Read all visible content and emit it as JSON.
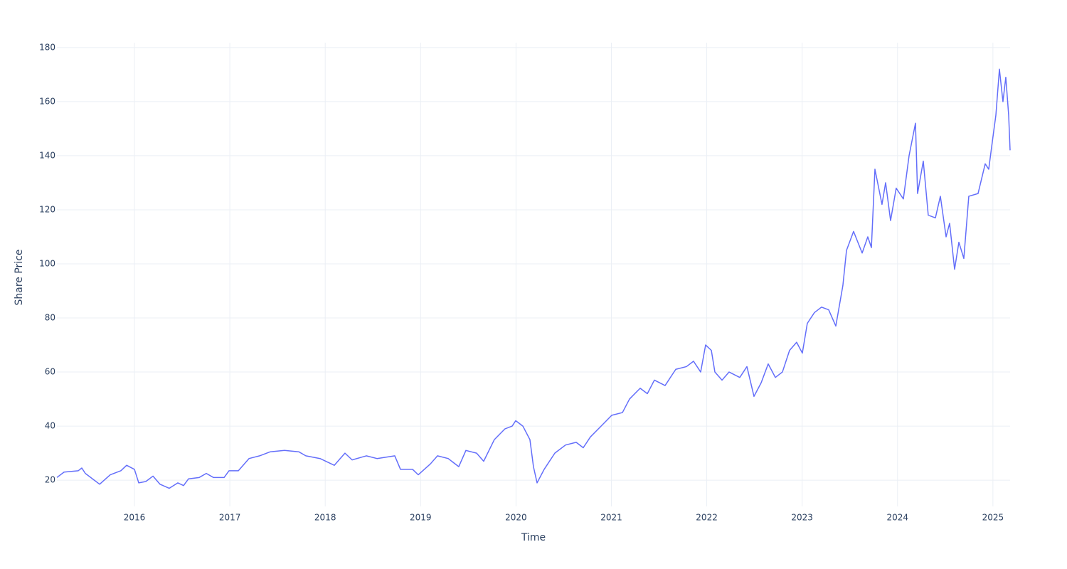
{
  "chart_data": {
    "type": "line",
    "x_label": "Time",
    "y_label": "Share Price",
    "color": "#636efa",
    "grid": true,
    "xlim": [
      2015.187,
      2025.18
    ],
    "ylim": [
      10.3,
      181.8
    ],
    "xticks": [
      2016,
      2017,
      2018,
      2019,
      2020,
      2021,
      2022,
      2023,
      2024,
      2025
    ],
    "yticks": [
      20,
      40,
      60,
      80,
      100,
      120,
      140,
      160,
      180
    ],
    "x": [
      2015.187,
      2015.262,
      2015.411,
      2015.448,
      2015.485,
      2015.56,
      2015.635,
      2015.746,
      2015.858,
      2015.918,
      2016.0,
      2016.045,
      2016.119,
      2016.194,
      2016.268,
      2016.365,
      2016.455,
      2016.515,
      2016.567,
      2016.679,
      2016.753,
      2016.828,
      2016.94,
      2016.992,
      2017.089,
      2017.201,
      2017.312,
      2017.424,
      2017.573,
      2017.723,
      2017.797,
      2017.946,
      2018.095,
      2018.207,
      2018.282,
      2018.431,
      2018.543,
      2018.729,
      2018.789,
      2018.916,
      2018.975,
      2019.102,
      2019.177,
      2019.289,
      2019.4,
      2019.475,
      2019.587,
      2019.661,
      2019.773,
      2019.885,
      2019.96,
      2019.997,
      2020.072,
      2020.146,
      2020.183,
      2020.221,
      2020.295,
      2020.407,
      2020.519,
      2020.631,
      2020.705,
      2020.78,
      2020.892,
      2021.004,
      2021.116,
      2021.19,
      2021.302,
      2021.377,
      2021.451,
      2021.563,
      2021.675,
      2021.787,
      2021.861,
      2021.936,
      2021.988,
      2022.048,
      2022.085,
      2022.16,
      2022.234,
      2022.346,
      2022.421,
      2022.495,
      2022.57,
      2022.644,
      2022.719,
      2022.793,
      2022.868,
      2022.942,
      2023.002,
      2023.054,
      2023.129,
      2023.203,
      2023.278,
      2023.353,
      2023.427,
      2023.465,
      2023.539,
      2023.629,
      2023.688,
      2023.726,
      2023.763,
      2023.837,
      2023.875,
      2023.927,
      2023.986,
      2024.061,
      2024.121,
      2024.188,
      2024.21,
      2024.27,
      2024.322,
      2024.397,
      2024.449,
      2024.509,
      2024.546,
      2024.598,
      2024.643,
      2024.695,
      2024.747,
      2024.844,
      2024.919,
      2024.956,
      2024.993,
      2025.031,
      2025.068,
      2025.105,
      2025.135,
      2025.165,
      2025.18
    ],
    "values": [
      21,
      23,
      23.5,
      24.5,
      22.5,
      20.5,
      18.5,
      22,
      23.5,
      25.5,
      24,
      19,
      19.5,
      21.5,
      18.5,
      17,
      19,
      18,
      20.5,
      21,
      22.5,
      21,
      21,
      23.5,
      23.5,
      28,
      29,
      30.5,
      31,
      30.5,
      29,
      28,
      25.5,
      30,
      27.5,
      29,
      28,
      29,
      24,
      24,
      22,
      26,
      29,
      28,
      25,
      31,
      30,
      27,
      35,
      39,
      40,
      42,
      40,
      35,
      25,
      19,
      24,
      30,
      33,
      34,
      32,
      36,
      40,
      44,
      45,
      50,
      54,
      52,
      57,
      55,
      61,
      62,
      64,
      60,
      70,
      68,
      60,
      57,
      60,
      58,
      62,
      51,
      56,
      63,
      58,
      60,
      68,
      71,
      67,
      78,
      82,
      84,
      83,
      77,
      92,
      105,
      112,
      104,
      110,
      106,
      135,
      122,
      130,
      116,
      128,
      124,
      140,
      152,
      126,
      138,
      118,
      117,
      125,
      110,
      115,
      98,
      108,
      102,
      125,
      126,
      137,
      135,
      145,
      155,
      172,
      160,
      169,
      155,
      142
    ]
  }
}
